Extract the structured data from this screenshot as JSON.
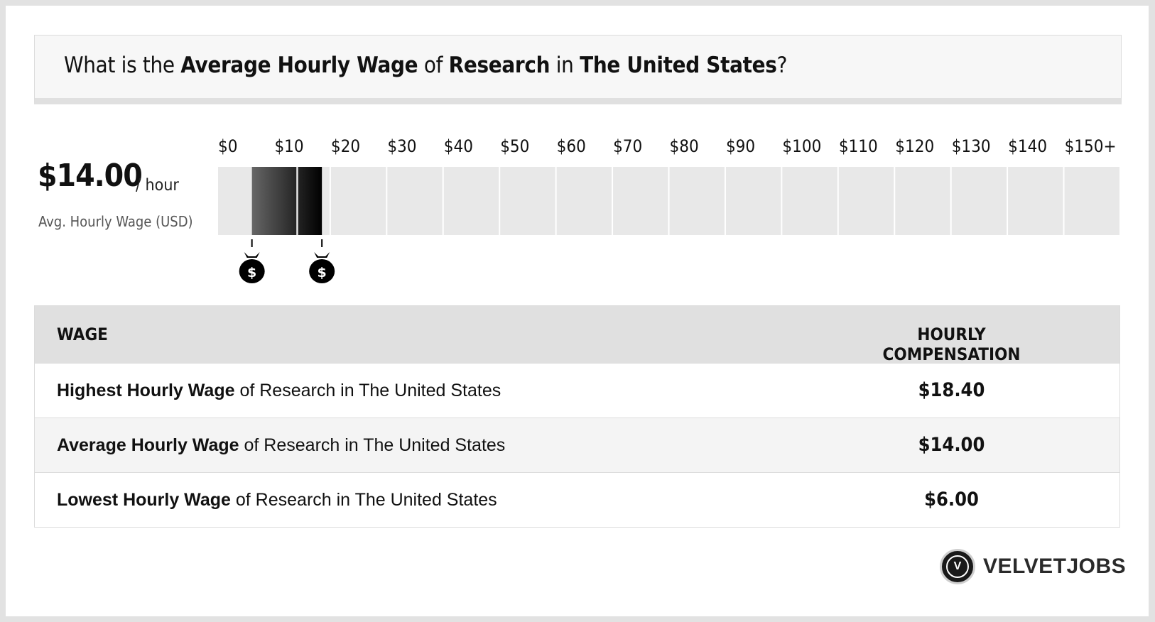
{
  "title": {
    "p1": "What is the ",
    "b1": "Average Hourly Wage",
    "p2": " of ",
    "b2": "Research",
    "p3": " in ",
    "b3": "The United States",
    "p4": "?"
  },
  "summary": {
    "value": "$14.00",
    "unit": "/ hour",
    "label": "Avg. Hourly Wage (USD)"
  },
  "chart_data": {
    "type": "bar",
    "tick_labels": [
      "$0",
      "$10",
      "$20",
      "$30",
      "$40",
      "$50",
      "$60",
      "$70",
      "$80",
      "$90",
      "$100",
      "$110",
      "$120",
      "$130",
      "$140",
      "$150+"
    ],
    "range": {
      "low": 6.0,
      "average": 14.0,
      "high": 18.4
    },
    "xlim": [
      0,
      150
    ],
    "markers": [
      {
        "value": 6.0,
        "icon": "money-bag-icon",
        "glyph": "$"
      },
      {
        "value": 18.4,
        "icon": "money-bag-icon",
        "glyph": "$"
      }
    ],
    "colors": {
      "track": "#e8e8e8",
      "range_start": "#666666",
      "range_end": "#000000"
    }
  },
  "table": {
    "headers": {
      "wage": "WAGE",
      "comp": "HOURLY COMPENSATION"
    },
    "rows": [
      {
        "bold": "Highest Hourly Wage",
        "rest": " of Research in The United States",
        "value": "$18.40"
      },
      {
        "bold": "Average Hourly Wage",
        "rest": " of Research in The United States",
        "value": "$14.00"
      },
      {
        "bold": "Lowest Hourly Wage",
        "rest": " of Research in The United States",
        "value": "$6.00"
      }
    ]
  },
  "logo": {
    "mark": "V",
    "text": "VELVETJOBS"
  }
}
